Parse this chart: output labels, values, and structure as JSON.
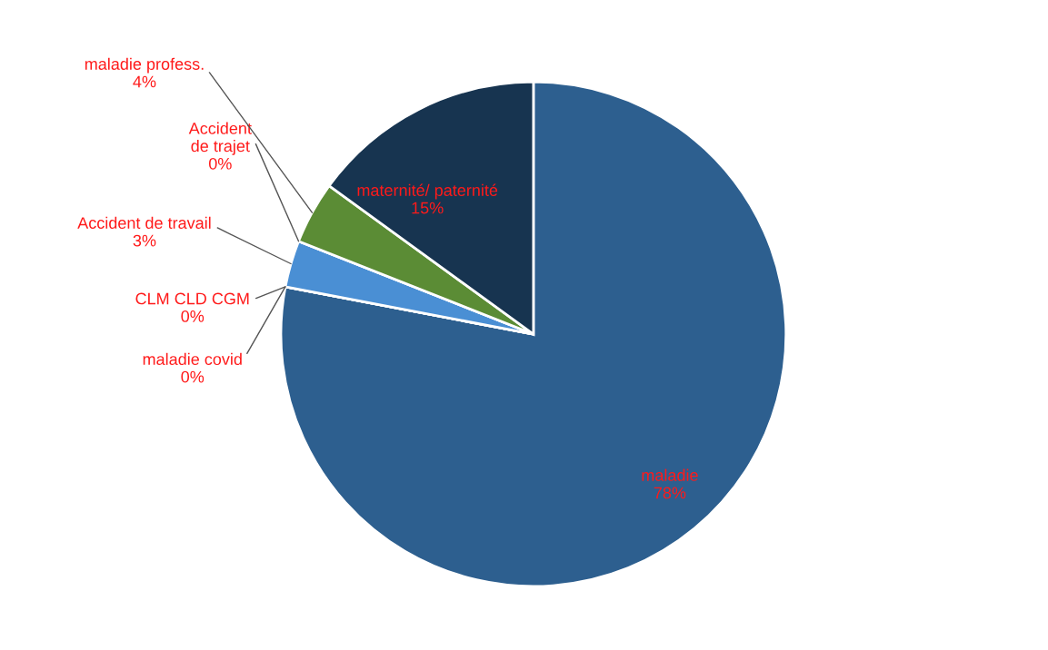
{
  "chart_data": {
    "type": "pie",
    "categories": [
      "maladie",
      "maladie covid",
      "CLM CLD CGM",
      "Accident de travail",
      "Accident\nde trajet",
      "maladie profess.",
      "maternité/ paternité"
    ],
    "values": [
      78,
      0,
      0,
      3,
      0,
      4,
      15
    ],
    "value_labels": [
      "78%",
      "0%",
      "0%",
      "3%",
      "0%",
      "4%",
      "15%"
    ],
    "colors": [
      "#2d5f8f",
      "#2d5f8f",
      "#2d5f8f",
      "#4a8fd4",
      "#4a8fd4",
      "#5b8c35",
      "#173450"
    ]
  }
}
